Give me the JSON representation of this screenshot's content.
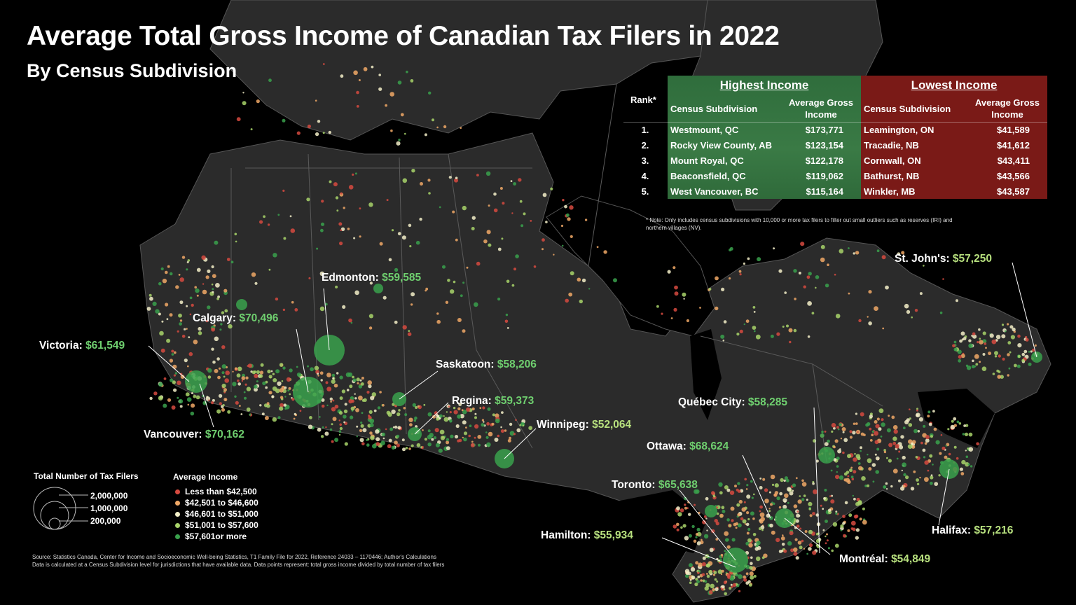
{
  "title": "Average Total Gross Income of Canadian Tax Filers in 2022",
  "subtitle": "By Census Subdivision",
  "table": {
    "rank_header": "Rank*",
    "highest_header": "Highest Income",
    "lowest_header": "Lowest Income",
    "col_subdivision": "Census Subdivision",
    "col_income_line1": "Average Gross",
    "col_income_line2": "Income",
    "rows": [
      {
        "rank": "1.",
        "high_name": "Westmount, QC",
        "high_val": "$173,771",
        "low_name": "Leamington, ON",
        "low_val": "$41,589"
      },
      {
        "rank": "2.",
        "high_name": "Rocky View County, AB",
        "high_val": "$123,154",
        "low_name": "Tracadie, NB",
        "low_val": "$41,612"
      },
      {
        "rank": "3.",
        "high_name": "Mount Royal, QC",
        "high_val": "$122,178",
        "low_name": "Cornwall, ON",
        "low_val": "$43,411"
      },
      {
        "rank": "4.",
        "high_name": "Beaconsfield, QC",
        "high_val": "$119,062",
        "low_name": "Bathurst, NB",
        "low_val": "$43,566"
      },
      {
        "rank": "5.",
        "high_name": "West Vancouver, BC",
        "high_val": "$115,164",
        "low_name": "Winkler, MB",
        "low_val": "$43,587"
      }
    ],
    "note_line1": "* Note: Only includes census subdivisions with 10,000 or more tax filers to filter out small outliers such as reserves (IRI) and",
    "note_line2": "northern villages (NV)."
  },
  "cities": [
    {
      "name": "Edmonton:",
      "value": "$59,585",
      "tier": "dark"
    },
    {
      "name": "Calgary:",
      "value": "$70,496",
      "tier": "dark"
    },
    {
      "name": "Victoria:",
      "value": "$61,549",
      "tier": "dark"
    },
    {
      "name": "Saskatoon:",
      "value": "$58,206",
      "tier": "dark"
    },
    {
      "name": "Regina:",
      "value": "$59,373",
      "tier": "dark"
    },
    {
      "name": "Vancouver:",
      "value": "$70,162",
      "tier": "dark"
    },
    {
      "name": "Winnipeg:",
      "value": "$52,064",
      "tier": "light"
    },
    {
      "name": "Québec City:",
      "value": "$58,285",
      "tier": "dark"
    },
    {
      "name": "Ottawa:",
      "value": "$68,624",
      "tier": "dark"
    },
    {
      "name": "Toronto:",
      "value": "$65,638",
      "tier": "dark"
    },
    {
      "name": "Hamilton:",
      "value": "$55,934",
      "tier": "light"
    },
    {
      "name": "Montréal:",
      "value": "$54,849",
      "tier": "light"
    },
    {
      "name": "Halifax:",
      "value": "$57,216",
      "tier": "light"
    },
    {
      "name": "St. John's:",
      "value": "$57,250",
      "tier": "light"
    }
  ],
  "legend": {
    "size_title": "Total Number of Tax Filers",
    "sizes": [
      "2,000,000",
      "1,000,000",
      "200,000"
    ],
    "color_title": "Average Income",
    "classes": [
      {
        "label": "Less than $42,500",
        "color": "#d64a3f"
      },
      {
        "label": "$42,501 to $46,600",
        "color": "#f0a866"
      },
      {
        "label": "$46,601 to $51,000",
        "color": "#f3efc8"
      },
      {
        "label": "$51,001 to $57,600",
        "color": "#a8d46a"
      },
      {
        "label": "$57,601or more",
        "color": "#3aa14c"
      }
    ]
  },
  "source_line1": "Source: Statistics Canada, Center for Income and Socioeconomic Well-being Statistics, T1 Family File for 2022, Reference 24033 – 1170446; Author's Calculations",
  "source_line2": "Data is calculated at a Census Subdivision level for jurisdictions that have available data. Data points represent: total gross income divided by total number of tax filers",
  "colors": {
    "land": "#2b2b2b",
    "water": "#000000",
    "border": "#5a5a5a",
    "highest": "#2f6d3c",
    "lowest": "#7a1a17"
  }
}
